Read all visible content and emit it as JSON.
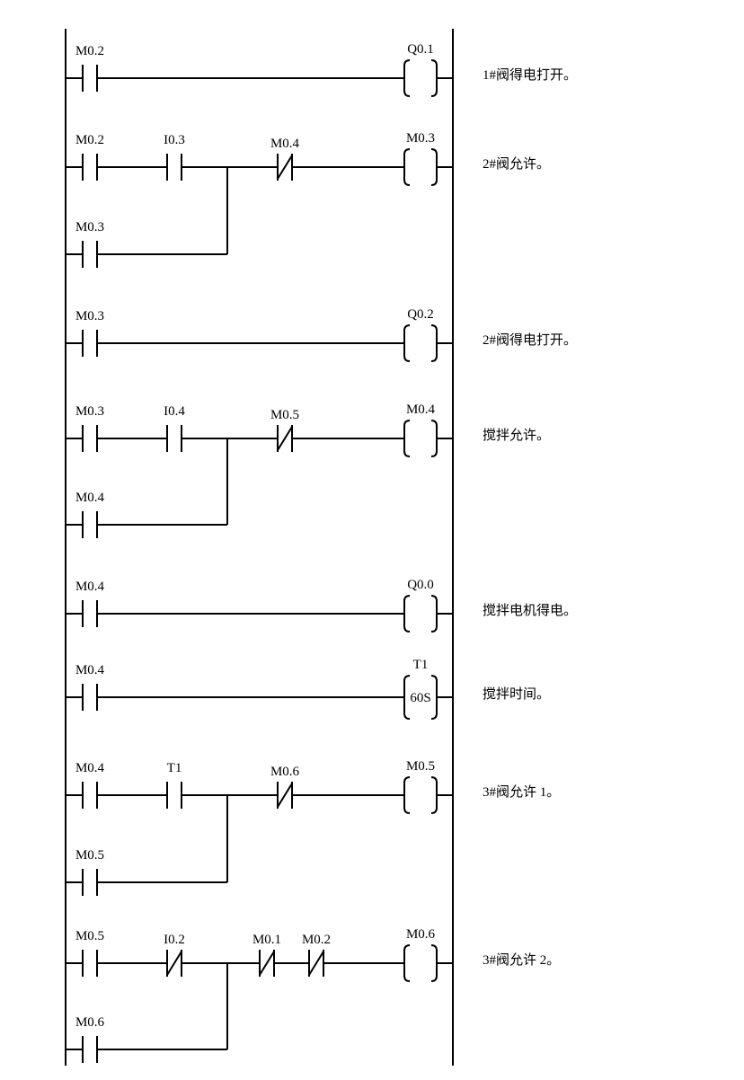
{
  "rungs": [
    {
      "main": [
        {
          "label": "M0.2",
          "type": "NO"
        }
      ],
      "output": {
        "label": "Q0.1",
        "type": "coil"
      },
      "comment": "1#阀得电打开。"
    },
    {
      "main": [
        {
          "label": "M0.2",
          "type": "NO"
        },
        {
          "label": "I0.3",
          "type": "NO"
        },
        {
          "label": "M0.4",
          "type": "NC"
        }
      ],
      "branch": {
        "label": "M0.3",
        "type": "NO"
      },
      "output": {
        "label": "M0.3",
        "type": "coil"
      },
      "comment": "2#阀允许。"
    },
    {
      "main": [
        {
          "label": "M0.3",
          "type": "NO"
        }
      ],
      "output": {
        "label": "Q0.2",
        "type": "coil"
      },
      "comment": "2#阀得电打开。"
    },
    {
      "main": [
        {
          "label": "M0.3",
          "type": "NO"
        },
        {
          "label": "I0.4",
          "type": "NO"
        },
        {
          "label": "M0.5",
          "type": "NC"
        }
      ],
      "branch": {
        "label": "M0.4",
        "type": "NO"
      },
      "output": {
        "label": "M0.4",
        "type": "coil"
      },
      "comment": "搅拌允许。"
    },
    {
      "main": [
        {
          "label": "M0.4",
          "type": "NO"
        }
      ],
      "output": {
        "label": "Q0.0",
        "type": "coil"
      },
      "comment": "搅拌电机得电。"
    },
    {
      "main": [
        {
          "label": "M0.4",
          "type": "NO"
        }
      ],
      "output": {
        "label": "T1",
        "type": "timer",
        "preset": "60S"
      },
      "comment": "搅拌时间。"
    },
    {
      "main": [
        {
          "label": "M0.4",
          "type": "NO"
        },
        {
          "label": "T1",
          "type": "NO"
        },
        {
          "label": "M0.6",
          "type": "NC"
        }
      ],
      "branch": {
        "label": "M0.5",
        "type": "NO"
      },
      "output": {
        "label": "M0.5",
        "type": "coil"
      },
      "comment": "3#阀允许 1。"
    },
    {
      "main": [
        {
          "label": "M0.5",
          "type": "NO"
        },
        {
          "label": "I0.2",
          "type": "NC"
        },
        {
          "label": "M0.1",
          "type": "NC"
        },
        {
          "label": "M0.2",
          "type": "NC"
        }
      ],
      "branch": {
        "label": "M0.6",
        "type": "NO"
      },
      "output": {
        "label": "M0.6",
        "type": "coil"
      },
      "comment": "3#阀允许 2。"
    }
  ]
}
